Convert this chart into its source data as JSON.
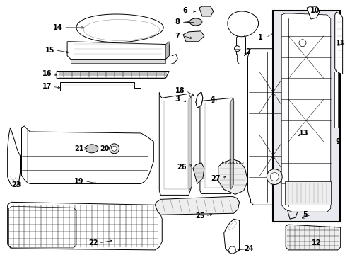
{
  "background_color": "#ffffff",
  "fig_width": 4.89,
  "fig_height": 3.6,
  "dpi": 100,
  "font_size": 7,
  "lw": 0.7
}
